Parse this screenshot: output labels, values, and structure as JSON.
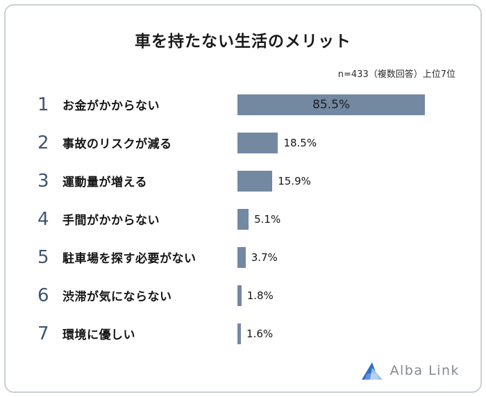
{
  "title": "車を持たない生活のメリット",
  "note": "n=433（複数回答）上位7位",
  "logo": {
    "text": "Alba Link"
  },
  "colors": {
    "bar": "#7389a2",
    "rank": "#3d5570",
    "border": "#c9ced6",
    "logo_blue_dark": "#2f6ec9",
    "logo_blue_light": "#9cc4e8"
  },
  "chart_data": {
    "type": "bar",
    "orientation": "horizontal",
    "title": "車を持たない生活のメリット",
    "note": "n=433（複数回答）上位7位",
    "ranks": [
      1,
      2,
      3,
      4,
      5,
      6,
      7
    ],
    "categories": [
      "お金がかからない",
      "事故のリスクが減る",
      "運動量が増える",
      "手間がかからない",
      "駐車場を探す必要がない",
      "渋滞が気にならない",
      "環境に優しい"
    ],
    "values": [
      85.5,
      18.5,
      15.9,
      5.1,
      3.7,
      1.8,
      1.6
    ],
    "value_labels": [
      "85.5%",
      "18.5%",
      "15.9%",
      "5.1%",
      "3.7%",
      "1.8%",
      "1.6%"
    ],
    "xlim": [
      0,
      100
    ],
    "grid": false,
    "legend": false
  }
}
